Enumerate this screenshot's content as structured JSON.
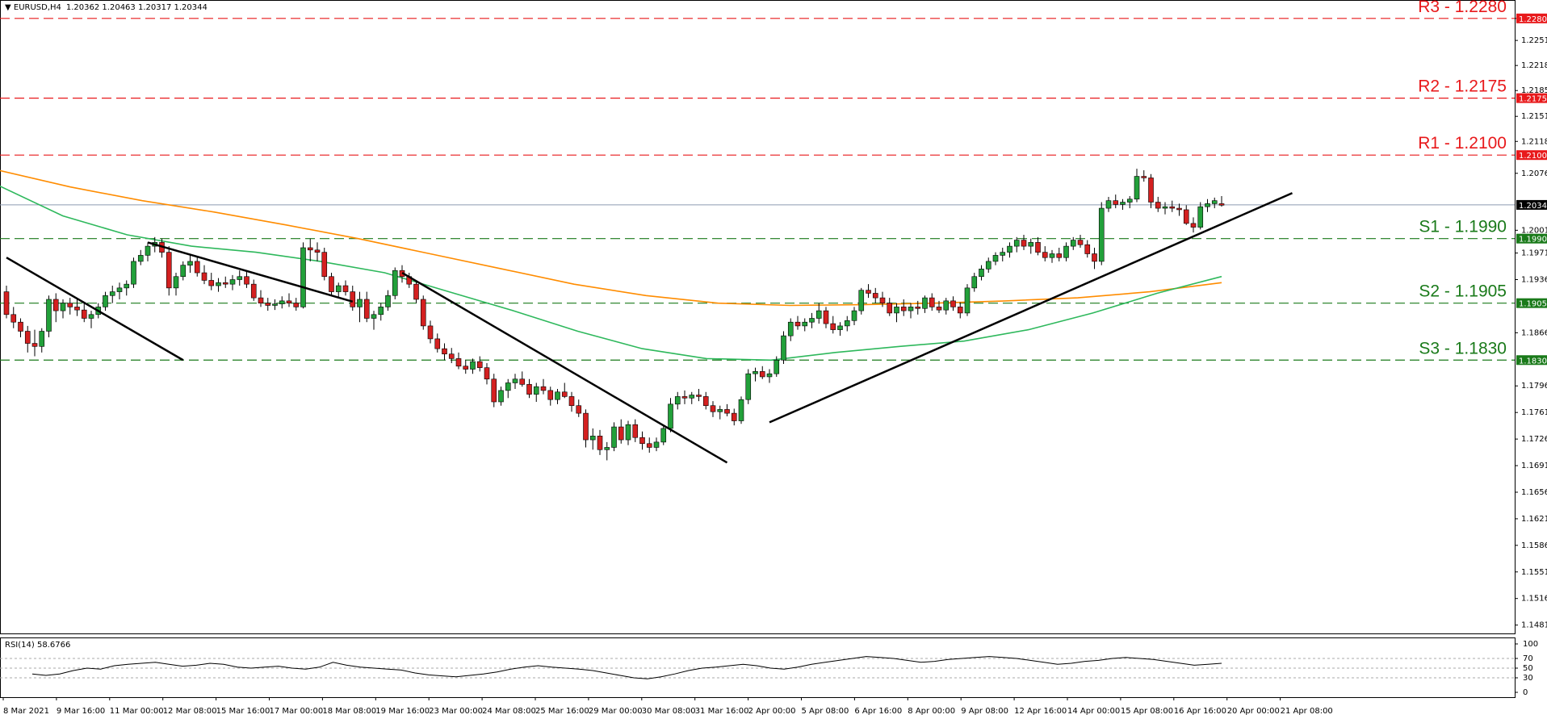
{
  "header": {
    "symbol": "EURUSD,H4",
    "ohlc": "1.20362 1.20463 1.20317 1.20344"
  },
  "rsi_header": {
    "label": "RSI(14) 58.6766"
  },
  "chart_data": {
    "type": "candlestick",
    "symbol": "EURUSD",
    "timeframe": "H4",
    "y_ticks": [
      "1.22800",
      "1.22510",
      "1.22180",
      "1.21850",
      "1.21510",
      "1.21180",
      "1.20760",
      "1.20010",
      "1.19710",
      "1.19360",
      "1.18660",
      "1.17960",
      "1.17610",
      "1.17260",
      "1.16910",
      "1.16560",
      "1.16210",
      "1.15860",
      "1.15510",
      "1.15160",
      "1.14810"
    ],
    "x_ticks": [
      "8 Mar 2021",
      "9 Mar 16:00",
      "11 Mar 00:00",
      "12 Mar 08:00",
      "15 Mar 16:00",
      "17 Mar 00:00",
      "18 Mar 08:00",
      "19 Mar 16:00",
      "23 Mar 00:00",
      "24 Mar 08:00",
      "25 Mar 16:00",
      "29 Mar 00:00",
      "30 Mar 08:00",
      "31 Mar 16:00",
      "2 Apr 00:00",
      "5 Apr 08:00",
      "6 Apr 16:00",
      "8 Apr 00:00",
      "9 Apr 08:00",
      "12 Apr 16:00",
      "14 Apr 00:00",
      "15 Apr 08:00",
      "16 Apr 16:00",
      "20 Apr 00:00",
      "21 Apr 08:00"
    ],
    "current_price": {
      "value": 1.20344,
      "label": "1.20344"
    },
    "levels": [
      {
        "name": "R3 - 1.2280",
        "value": 1.228,
        "price_label": "1.22800",
        "type": "resistance",
        "color": "#e8191b"
      },
      {
        "name": "R2 - 1.2175",
        "value": 1.2175,
        "price_label": "1.21750",
        "type": "resistance",
        "color": "#e8191b"
      },
      {
        "name": "R1 - 1.2100",
        "value": 1.21,
        "price_label": "1.21000",
        "type": "resistance",
        "color": "#e8191b"
      },
      {
        "name": "S1 - 1.1990",
        "value": 1.199,
        "price_label": "1.19900",
        "type": "support",
        "color": "#1a7a1a"
      },
      {
        "name": "S2 - 1.1905",
        "value": 1.1905,
        "price_label": "1.19050",
        "type": "support",
        "color": "#1a7a1a"
      },
      {
        "name": "S3 - 1.1830",
        "value": 1.183,
        "price_label": "1.18300",
        "type": "support",
        "color": "#1a7a1a"
      }
    ],
    "candles": [
      [
        1.192,
        1.1928,
        1.1885,
        1.189
      ],
      [
        1.189,
        1.19,
        1.1872,
        1.188
      ],
      [
        1.188,
        1.1885,
        1.186,
        1.1868
      ],
      [
        1.1868,
        1.1875,
        1.184,
        1.1852
      ],
      [
        1.1852,
        1.187,
        1.1835,
        1.1848
      ],
      [
        1.1848,
        1.1872,
        1.184,
        1.1868
      ],
      [
        1.1868,
        1.1915,
        1.186,
        1.191
      ],
      [
        1.191,
        1.1918,
        1.188,
        1.1895
      ],
      [
        1.1895,
        1.191,
        1.1885,
        1.1905
      ],
      [
        1.1905,
        1.1912,
        1.189,
        1.19
      ],
      [
        1.19,
        1.1912,
        1.1888,
        1.1896
      ],
      [
        1.1896,
        1.1905,
        1.188,
        1.1885
      ],
      [
        1.1885,
        1.1895,
        1.1872,
        1.189
      ],
      [
        1.189,
        1.1905,
        1.1885,
        1.19
      ],
      [
        1.19,
        1.192,
        1.1895,
        1.1915
      ],
      [
        1.1915,
        1.1928,
        1.1905,
        1.192
      ],
      [
        1.192,
        1.1932,
        1.191,
        1.1925
      ],
      [
        1.1925,
        1.1935,
        1.1915,
        1.193
      ],
      [
        1.193,
        1.1965,
        1.1925,
        1.196
      ],
      [
        1.196,
        1.1975,
        1.1955,
        1.1968
      ],
      [
        1.1968,
        1.1985,
        1.196,
        1.198
      ],
      [
        1.198,
        1.1992,
        1.1972,
        1.1985
      ],
      [
        1.1985,
        1.199,
        1.1965,
        1.1972
      ],
      [
        1.1972,
        1.198,
        1.1915,
        1.1925
      ],
      [
        1.1925,
        1.1945,
        1.1915,
        1.194
      ],
      [
        1.194,
        1.196,
        1.1935,
        1.1955
      ],
      [
        1.1955,
        1.1968,
        1.1945,
        1.196
      ],
      [
        1.196,
        1.1966,
        1.194,
        1.1945
      ],
      [
        1.1945,
        1.1955,
        1.193,
        1.1935
      ],
      [
        1.1935,
        1.1945,
        1.1922,
        1.1928
      ],
      [
        1.1928,
        1.1938,
        1.192,
        1.1932
      ],
      [
        1.1932,
        1.194,
        1.1925,
        1.193
      ],
      [
        1.193,
        1.1942,
        1.1922,
        1.1936
      ],
      [
        1.1936,
        1.1948,
        1.1928,
        1.194
      ],
      [
        1.194,
        1.1948,
        1.1925,
        1.193
      ],
      [
        1.193,
        1.1936,
        1.1908,
        1.1912
      ],
      [
        1.1912,
        1.1922,
        1.19,
        1.1905
      ],
      [
        1.1905,
        1.1912,
        1.1895,
        1.1902
      ],
      [
        1.1902,
        1.191,
        1.1896,
        1.1904
      ],
      [
        1.1904,
        1.1914,
        1.1898,
        1.1908
      ],
      [
        1.1908,
        1.1918,
        1.19,
        1.1905
      ],
      [
        1.1905,
        1.1912,
        1.1895,
        1.19
      ],
      [
        1.19,
        1.1985,
        1.1898,
        1.1978
      ],
      [
        1.1978,
        1.199,
        1.196,
        1.1975
      ],
      [
        1.1975,
        1.1985,
        1.196,
        1.1972
      ],
      [
        1.1972,
        1.1978,
        1.1935,
        1.194
      ],
      [
        1.194,
        1.1945,
        1.1915,
        1.192
      ],
      [
        1.192,
        1.1932,
        1.1912,
        1.1928
      ],
      [
        1.1928,
        1.1935,
        1.1915,
        1.192
      ],
      [
        1.192,
        1.1928,
        1.1895,
        1.19
      ],
      [
        1.19,
        1.192,
        1.188,
        1.191
      ],
      [
        1.191,
        1.192,
        1.188,
        1.1885
      ],
      [
        1.1885,
        1.1895,
        1.187,
        1.189
      ],
      [
        1.189,
        1.1905,
        1.1882,
        1.19
      ],
      [
        1.19,
        1.1922,
        1.1895,
        1.1915
      ],
      [
        1.1915,
        1.1952,
        1.191,
        1.1948
      ],
      [
        1.1948,
        1.1955,
        1.1932,
        1.194
      ],
      [
        1.194,
        1.1945,
        1.1925,
        1.193
      ],
      [
        1.193,
        1.1935,
        1.1905,
        1.191
      ],
      [
        1.191,
        1.1915,
        1.187,
        1.1875
      ],
      [
        1.1875,
        1.1882,
        1.1852,
        1.1858
      ],
      [
        1.1858,
        1.1865,
        1.184,
        1.1845
      ],
      [
        1.1845,
        1.1852,
        1.183,
        1.1838
      ],
      [
        1.1838,
        1.1846,
        1.1826,
        1.1832
      ],
      [
        1.1832,
        1.184,
        1.1818,
        1.1822
      ],
      [
        1.1822,
        1.183,
        1.1812,
        1.1818
      ],
      [
        1.1818,
        1.1832,
        1.1812,
        1.1828
      ],
      [
        1.1828,
        1.1835,
        1.1815,
        1.182
      ],
      [
        1.182,
        1.1826,
        1.1798,
        1.1805
      ],
      [
        1.1805,
        1.1812,
        1.1768,
        1.1775
      ],
      [
        1.1775,
        1.1795,
        1.177,
        1.179
      ],
      [
        1.179,
        1.1805,
        1.178,
        1.18
      ],
      [
        1.18,
        1.1812,
        1.1792,
        1.1805
      ],
      [
        1.1805,
        1.1815,
        1.1795,
        1.1798
      ],
      [
        1.1798,
        1.1805,
        1.178,
        1.1785
      ],
      [
        1.1785,
        1.18,
        1.1775,
        1.1795
      ],
      [
        1.1795,
        1.1805,
        1.1785,
        1.179
      ],
      [
        1.179,
        1.1795,
        1.177,
        1.1778
      ],
      [
        1.1778,
        1.1792,
        1.1772,
        1.1788
      ],
      [
        1.1788,
        1.18,
        1.178,
        1.1782
      ],
      [
        1.1782,
        1.1788,
        1.1762,
        1.177
      ],
      [
        1.177,
        1.1778,
        1.1755,
        1.176
      ],
      [
        1.176,
        1.1765,
        1.1715,
        1.1725
      ],
      [
        1.1725,
        1.174,
        1.1712,
        1.173
      ],
      [
        1.173,
        1.1738,
        1.1705,
        1.1712
      ],
      [
        1.1712,
        1.1722,
        1.1698,
        1.1715
      ],
      [
        1.1715,
        1.1748,
        1.171,
        1.1742
      ],
      [
        1.1742,
        1.1752,
        1.172,
        1.1725
      ],
      [
        1.1725,
        1.175,
        1.1718,
        1.1745
      ],
      [
        1.1745,
        1.1752,
        1.1722,
        1.1728
      ],
      [
        1.1728,
        1.1736,
        1.1712,
        1.172
      ],
      [
        1.172,
        1.1728,
        1.1708,
        1.1715
      ],
      [
        1.1715,
        1.1728,
        1.171,
        1.1722
      ],
      [
        1.1722,
        1.1745,
        1.1718,
        1.174
      ],
      [
        1.174,
        1.178,
        1.1735,
        1.1772
      ],
      [
        1.1772,
        1.1788,
        1.1765,
        1.1782
      ],
      [
        1.1782,
        1.179,
        1.1772,
        1.178
      ],
      [
        1.178,
        1.1788,
        1.1772,
        1.1784
      ],
      [
        1.1784,
        1.1792,
        1.1776,
        1.1782
      ],
      [
        1.1782,
        1.1788,
        1.1765,
        1.177
      ],
      [
        1.177,
        1.1776,
        1.1755,
        1.1762
      ],
      [
        1.1762,
        1.177,
        1.1752,
        1.1765
      ],
      [
        1.1765,
        1.1772,
        1.1756,
        1.176
      ],
      [
        1.176,
        1.1766,
        1.1744,
        1.175
      ],
      [
        1.175,
        1.1782,
        1.1746,
        1.1778
      ],
      [
        1.1778,
        1.1818,
        1.1772,
        1.1812
      ],
      [
        1.1812,
        1.182,
        1.1802,
        1.1815
      ],
      [
        1.1815,
        1.1822,
        1.1805,
        1.1808
      ],
      [
        1.1808,
        1.1818,
        1.18,
        1.1812
      ],
      [
        1.1812,
        1.1835,
        1.1808,
        1.183
      ],
      [
        1.183,
        1.1868,
        1.1825,
        1.1862
      ],
      [
        1.1862,
        1.1885,
        1.1855,
        1.188
      ],
      [
        1.188,
        1.1888,
        1.187,
        1.1875
      ],
      [
        1.1875,
        1.1885,
        1.1868,
        1.188
      ],
      [
        1.188,
        1.1892,
        1.1872,
        1.1885
      ],
      [
        1.1885,
        1.1905,
        1.1878,
        1.1895
      ],
      [
        1.1895,
        1.19,
        1.1872,
        1.1878
      ],
      [
        1.1878,
        1.1888,
        1.1865,
        1.187
      ],
      [
        1.187,
        1.188,
        1.1862,
        1.1875
      ],
      [
        1.1875,
        1.1888,
        1.1868,
        1.1882
      ],
      [
        1.1882,
        1.19,
        1.1876,
        1.1895
      ],
      [
        1.1895,
        1.1925,
        1.189,
        1.1922
      ],
      [
        1.1922,
        1.193,
        1.1912,
        1.1918
      ],
      [
        1.1918,
        1.1925,
        1.1905,
        1.1912
      ],
      [
        1.1912,
        1.192,
        1.19,
        1.1905
      ],
      [
        1.1905,
        1.1912,
        1.1888,
        1.1892
      ],
      [
        1.1892,
        1.1905,
        1.188,
        1.19
      ],
      [
        1.19,
        1.191,
        1.1888,
        1.1895
      ],
      [
        1.1895,
        1.1905,
        1.1885,
        1.19
      ],
      [
        1.19,
        1.1908,
        1.189,
        1.1898
      ],
      [
        1.1898,
        1.1915,
        1.1892,
        1.1912
      ],
      [
        1.1912,
        1.1918,
        1.1895,
        1.19
      ],
      [
        1.19,
        1.1908,
        1.1892,
        1.1896
      ],
      [
        1.1896,
        1.1912,
        1.189,
        1.1908
      ],
      [
        1.1908,
        1.1914,
        1.1895,
        1.19
      ],
      [
        1.19,
        1.1906,
        1.1885,
        1.1892
      ],
      [
        1.1892,
        1.193,
        1.1888,
        1.1925
      ],
      [
        1.1925,
        1.1945,
        1.192,
        1.194
      ],
      [
        1.194,
        1.1955,
        1.1935,
        1.195
      ],
      [
        1.195,
        1.1965,
        1.1945,
        1.196
      ],
      [
        1.196,
        1.1972,
        1.1955,
        1.1968
      ],
      [
        1.1968,
        1.1978,
        1.196,
        1.1972
      ],
      [
        1.1972,
        1.1985,
        1.1965,
        1.198
      ],
      [
        1.198,
        1.1992,
        1.1972,
        1.1988
      ],
      [
        1.1988,
        1.1995,
        1.1975,
        1.198
      ],
      [
        1.198,
        1.199,
        1.197,
        1.1985
      ],
      [
        1.1985,
        1.1992,
        1.1968,
        1.1972
      ],
      [
        1.1972,
        1.198,
        1.196,
        1.1965
      ],
      [
        1.1965,
        1.1975,
        1.1958,
        1.197
      ],
      [
        1.197,
        1.1978,
        1.196,
        1.1965
      ],
      [
        1.1965,
        1.1985,
        1.196,
        1.198
      ],
      [
        1.198,
        1.1992,
        1.1975,
        1.1988
      ],
      [
        1.1988,
        1.1995,
        1.1978,
        1.1982
      ],
      [
        1.1982,
        1.1988,
        1.1965,
        1.197
      ],
      [
        1.197,
        1.1978,
        1.195,
        1.196
      ],
      [
        1.196,
        1.2038,
        1.1955,
        1.203
      ],
      [
        1.203,
        1.2045,
        1.2025,
        1.204
      ],
      [
        1.204,
        1.2048,
        1.203,
        1.2035
      ],
      [
        1.2035,
        1.2042,
        1.2028,
        1.2038
      ],
      [
        1.2038,
        1.2046,
        1.203,
        1.2042
      ],
      [
        1.2042,
        1.2082,
        1.2038,
        1.2072
      ],
      [
        1.2072,
        1.208,
        1.2065,
        1.207
      ],
      [
        1.207,
        1.2075,
        1.203,
        1.2038
      ],
      [
        1.2038,
        1.2045,
        1.2025,
        1.203
      ],
      [
        1.203,
        1.2038,
        1.2022,
        1.2032
      ],
      [
        1.2032,
        1.204,
        1.2025,
        1.203
      ],
      [
        1.203,
        1.2036,
        1.202,
        1.2028
      ],
      [
        1.2028,
        1.2034,
        1.2008,
        1.201
      ],
      [
        1.201,
        1.2018,
        1.1998,
        1.2005
      ],
      [
        1.2005,
        1.2038,
        1.2002,
        1.2032
      ],
      [
        1.2032,
        1.2042,
        1.2025,
        1.2036
      ],
      [
        1.2036,
        1.2044,
        1.203,
        1.204
      ],
      [
        1.2036,
        1.2046,
        1.2032,
        1.2034
      ]
    ],
    "moving_averages": [
      {
        "color": "#ff8c00",
        "values": [
          1.208,
          1.2058,
          1.204,
          1.2025,
          1.2008,
          1.199,
          1.197,
          1.195,
          1.193,
          1.1915,
          1.1905,
          1.1902,
          1.1903,
          1.1905,
          1.1908,
          1.1912,
          1.192,
          1.1932
        ]
      },
      {
        "color": "#2eb85c",
        "values": [
          1.206,
          1.202,
          1.1995,
          1.198,
          1.1972,
          1.196,
          1.1945,
          1.192,
          1.1895,
          1.1868,
          1.1845,
          1.1832,
          1.183,
          1.184,
          1.1848,
          1.1855,
          1.187,
          1.1892,
          1.1918,
          1.194
        ]
      }
    ],
    "trendlines": [
      [
        [
          0,
          1.1965
        ],
        [
          25,
          1.183
        ]
      ],
      [
        [
          20,
          1.1985
        ],
        [
          49,
          1.1907
        ]
      ],
      [
        [
          56,
          1.1945
        ],
        [
          102,
          1.1695
        ]
      ],
      [
        [
          108,
          1.1748
        ],
        [
          182,
          1.205
        ]
      ]
    ],
    "rsi": {
      "period": 14,
      "value": 58.6766,
      "y_ticks": [
        "100",
        "70",
        "50",
        "30",
        "0"
      ],
      "values": [
        38,
        35,
        38,
        45,
        50,
        48,
        55,
        58,
        60,
        62,
        58,
        54,
        56,
        60,
        58,
        52,
        50,
        52,
        54,
        50,
        48,
        52,
        62,
        56,
        52,
        50,
        48,
        46,
        40,
        36,
        34,
        32,
        35,
        38,
        42,
        48,
        52,
        55,
        52,
        50,
        48,
        45,
        40,
        35,
        30,
        28,
        32,
        38,
        45,
        50,
        52,
        55,
        58,
        55,
        50,
        48,
        52,
        58,
        62,
        66,
        70,
        74,
        72,
        70,
        66,
        62,
        64,
        68,
        70,
        72,
        74,
        72,
        70,
        66,
        62,
        58,
        60,
        64,
        66,
        70,
        72,
        70,
        68,
        64,
        60,
        56,
        58,
        60
      ]
    }
  }
}
